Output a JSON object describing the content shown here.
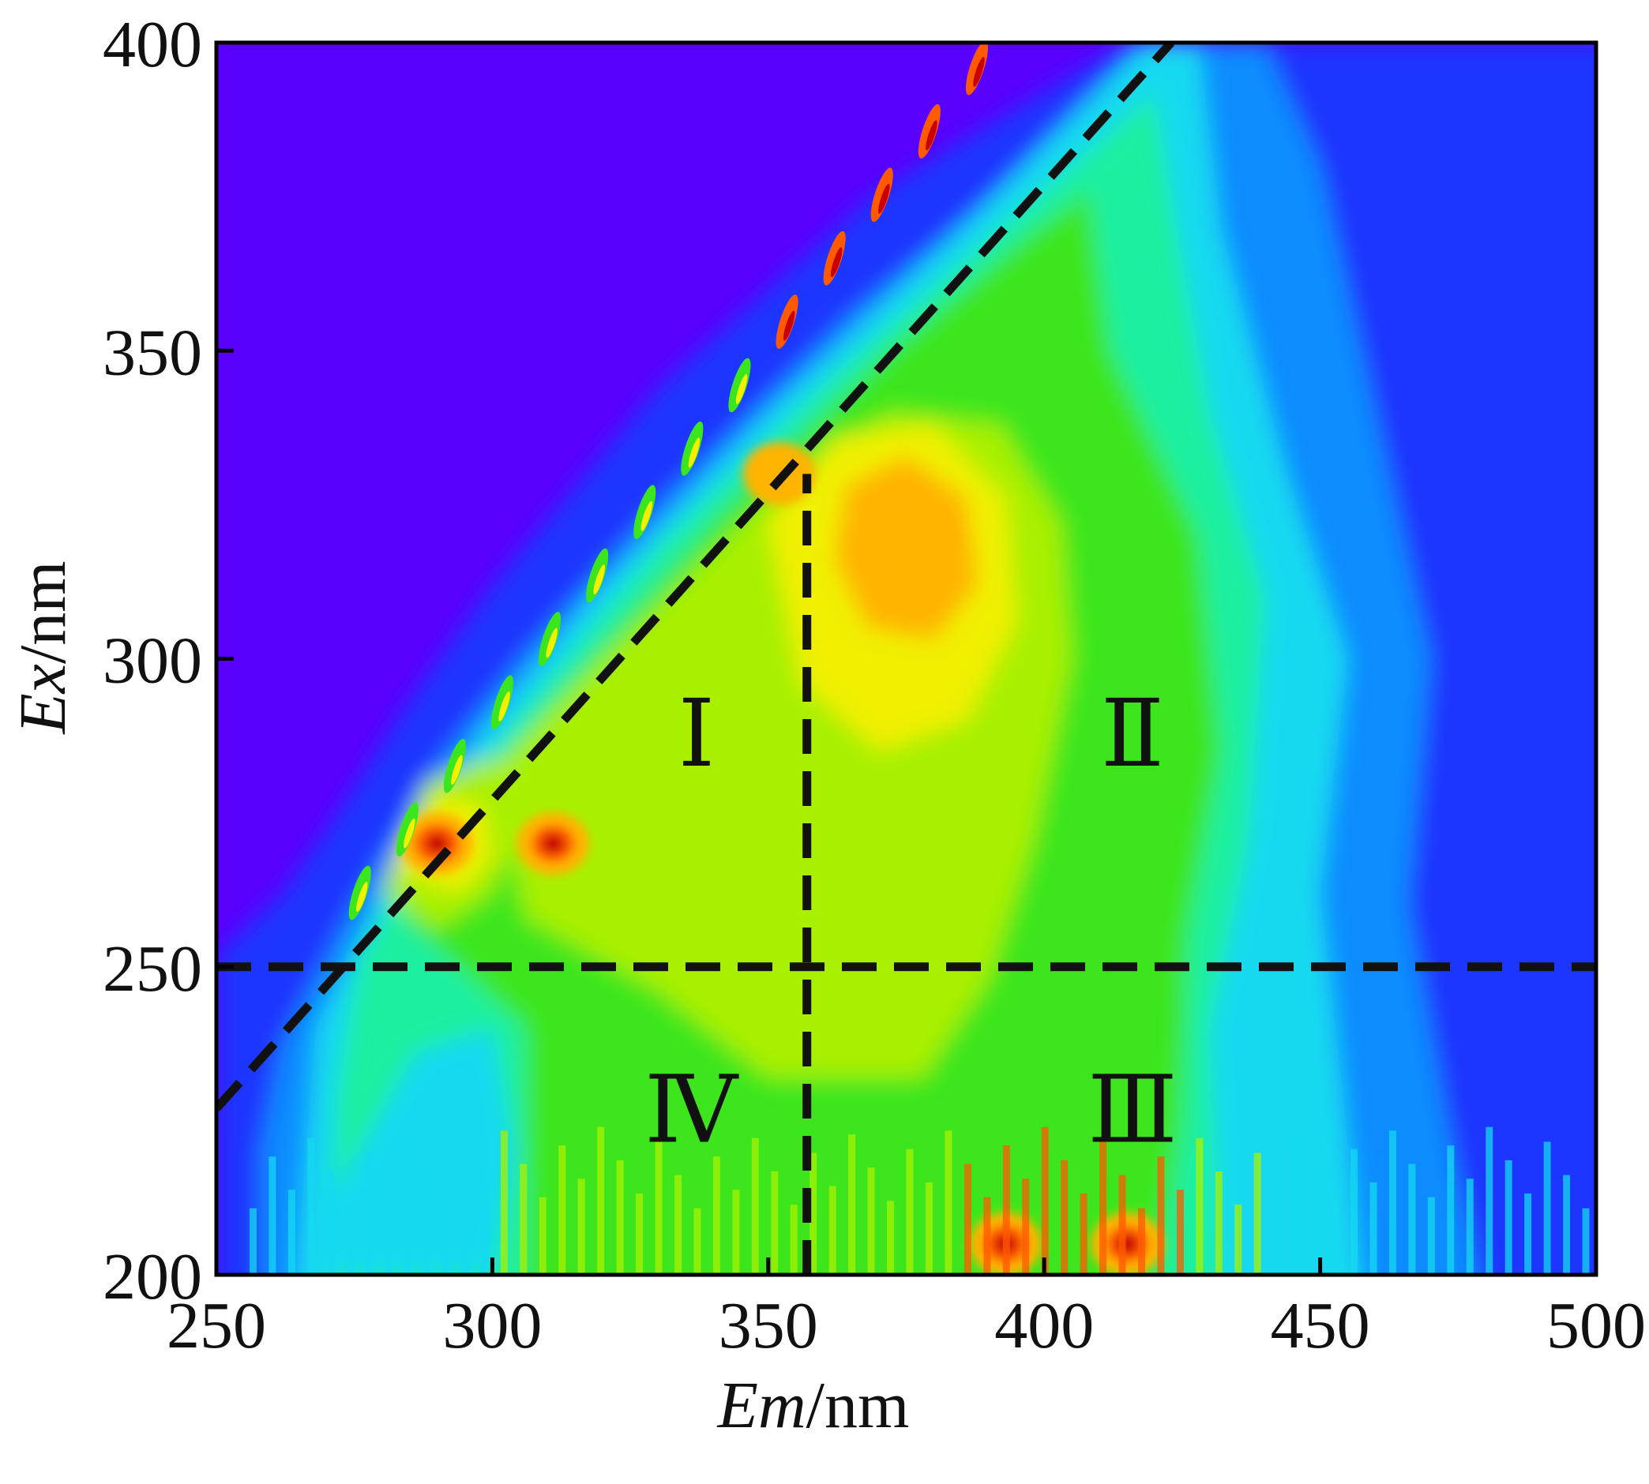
{
  "chart_data": {
    "type": "heatmap",
    "title": "",
    "xlabel": {
      "italic": "Em",
      "rest": "/nm"
    },
    "ylabel": {
      "italic": "Ex",
      "rest": "/nm"
    },
    "xlim": [
      250,
      500
    ],
    "ylim": [
      200,
      400
    ],
    "xticks": [
      250,
      300,
      350,
      400,
      450,
      500
    ],
    "yticks": [
      200,
      250,
      300,
      350,
      400
    ],
    "grid": false,
    "legend": "none",
    "colormap": [
      "#5a00ff",
      "#1a36ff",
      "#0e8cff",
      "#14d9f0",
      "#1ef0a0",
      "#3ce61e",
      "#a8f000",
      "#f0f000",
      "#ffb400",
      "#ff5a00",
      "#c80000"
    ],
    "background_color": "#5a00ff",
    "peaks": [
      {
        "em": 290,
        "ex": 270,
        "intensity": 0.95
      },
      {
        "em": 311,
        "ex": 270,
        "intensity": 0.9
      },
      {
        "em": 378,
        "ex": 320,
        "intensity": 0.82
      },
      {
        "em": 352,
        "ex": 330,
        "intensity": 0.8
      },
      {
        "em": 393,
        "ex": 205,
        "intensity": 0.92
      },
      {
        "em": 415,
        "ex": 205,
        "intensity": 0.9
      }
    ],
    "dividers": [
      {
        "type": "diagonal",
        "from": {
          "em": 250,
          "ex": 227
        },
        "to": {
          "em": 423,
          "ex": 400
        }
      },
      {
        "type": "vertical",
        "em": 357,
        "from_ex": 200,
        "to_ex": 330
      },
      {
        "type": "horizontal",
        "ex": 250,
        "from_em": 250,
        "to_em": 500
      }
    ],
    "regions": [
      {
        "label": "Ⅰ",
        "em": 337,
        "ex": 288
      },
      {
        "label": "Ⅱ",
        "em": 416,
        "ex": 288
      },
      {
        "label": "Ⅲ",
        "em": 416,
        "ex": 227
      },
      {
        "label": "Ⅳ",
        "em": 336,
        "ex": 227
      }
    ]
  }
}
